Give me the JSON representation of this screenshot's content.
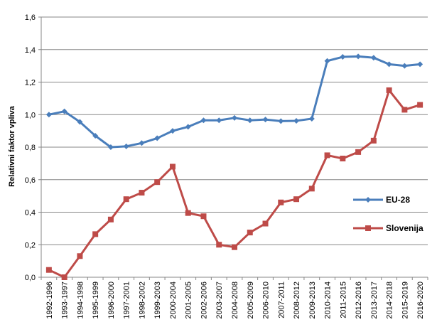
{
  "chart_data": {
    "type": "line",
    "ylabel": "Relativni faktor vpliva",
    "xlabel": "",
    "ylim": [
      0,
      1.6
    ],
    "ytick_step": 0.2,
    "ytick_labels": [
      "0,0",
      "0,2",
      "0,4",
      "0,6",
      "0,8",
      "1,0",
      "1,2",
      "1,4",
      "1,6"
    ],
    "grid": true,
    "legend": "right",
    "categories": [
      "1992-1996",
      "1993-1997",
      "1994-1998",
      "1995-1999",
      "1996-2000",
      "1997-2001",
      "1998-2002",
      "1999-2003",
      "2000-2004",
      "2001-2005",
      "2002-2006",
      "2003-2007",
      "2004-2008",
      "2005-2009",
      "2006-2010",
      "2007-2011",
      "2008-2012",
      "2009-2013",
      "2010-2014",
      "2011-2015",
      "2012-2016",
      "2013-2017",
      "2014-2018",
      "2015-2019",
      "2016-2020"
    ],
    "series": [
      {
        "name": "EU-28",
        "color": "#4a7ebb",
        "marker": "diamond",
        "values": [
          1.0,
          1.02,
          0.955,
          0.87,
          0.8,
          0.805,
          0.825,
          0.855,
          0.9,
          0.925,
          0.965,
          0.965,
          0.98,
          0.965,
          0.97,
          0.96,
          0.962,
          0.975,
          1.33,
          1.355,
          1.358,
          1.35,
          1.31,
          1.3,
          1.31
        ]
      },
      {
        "name": "Slovenija",
        "color": "#be4b48",
        "marker": "square",
        "values": [
          0.045,
          0.0,
          0.13,
          0.265,
          0.355,
          0.48,
          0.52,
          0.585,
          0.68,
          0.395,
          0.375,
          0.2,
          0.185,
          0.275,
          0.33,
          0.46,
          0.48,
          0.545,
          0.75,
          0.73,
          0.77,
          0.84,
          1.15,
          1.03,
          1.06
        ]
      }
    ]
  }
}
